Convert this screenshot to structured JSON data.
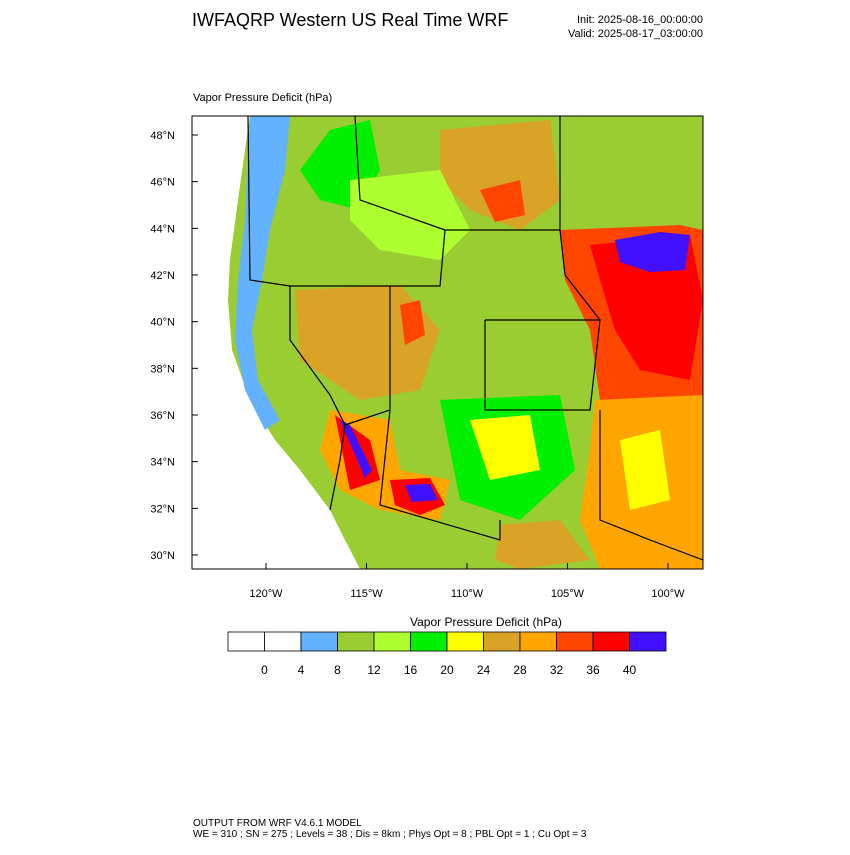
{
  "header": {
    "title": "IWFAQRP Western US Real Time WRF",
    "init": "Init: 2025-08-16_00:00:00",
    "valid": "Valid: 2025-08-17_03:00:00"
  },
  "map": {
    "label": "Vapor Pressure Deficit   (hPa)",
    "lat_labels": [
      "48°N",
      "46°N",
      "44°N",
      "42°N",
      "40°N",
      "38°N",
      "36°N",
      "34°N",
      "32°N",
      "30°N"
    ],
    "lon_labels": [
      "120°W",
      "115°W",
      "110°W",
      "105°W",
      "100°W"
    ]
  },
  "colorbar": {
    "title": "Vapor Pressure Deficit  (hPa)",
    "colors": [
      "#ffffff",
      "#ffffff",
      "#62b2ff",
      "#9acd32",
      "#adff2f",
      "#00f000",
      "#ffff00",
      "#d9a326",
      "#ffa500",
      "#ff4500",
      "#ff0000",
      "#4010ff"
    ],
    "levels": [
      0,
      4,
      8,
      12,
      16,
      20,
      24,
      28,
      32,
      36,
      40
    ]
  },
  "footer": {
    "line1": "OUTPUT FROM WRF V4.6.1 MODEL",
    "line2": "WE = 310 ; SN = 275 ; Levels = 38 ; Dis = 8km ; Phys Opt = 8 ; PBL Opt = 1 ; Cu Opt = 3"
  }
}
